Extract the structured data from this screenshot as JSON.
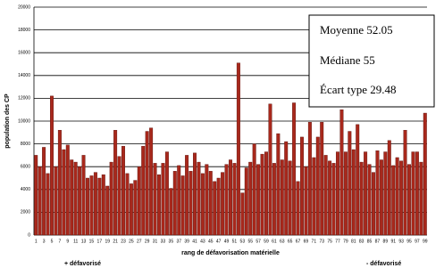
{
  "chart_data": {
    "type": "bar",
    "y_label": "population des CP",
    "x_label": "rang de défavorisation matérielle",
    "annotations": [
      "+ défavorisé",
      "- défavorisé"
    ],
    "stats_box": [
      "Moyenne 52.05",
      "Médiane 55",
      "Écart type 29.48"
    ],
    "categories": [
      "1",
      null,
      "3",
      null,
      "5",
      null,
      "7",
      null,
      "9",
      null,
      "11",
      null,
      "13",
      null,
      "15",
      null,
      "17",
      null,
      "19",
      null,
      "21",
      null,
      "23",
      null,
      "25",
      null,
      "27",
      null,
      "29",
      null,
      "31",
      null,
      "33",
      null,
      "35",
      null,
      "37",
      null,
      "39",
      null,
      "41",
      null,
      "43",
      null,
      "45",
      null,
      "47",
      null,
      "49",
      null,
      "51",
      null,
      "53",
      null,
      "55",
      null,
      "57",
      null,
      "59",
      null,
      "61",
      null,
      "63",
      null,
      "65",
      null,
      "67",
      null,
      "69",
      null,
      "71",
      null,
      "73",
      null,
      "75",
      null,
      "77",
      null,
      "79",
      null,
      "81",
      null,
      "83",
      null,
      "85",
      null,
      "87",
      null,
      "89",
      null,
      "91",
      null,
      "93",
      null,
      "95",
      null,
      "97",
      null,
      "99"
    ],
    "values": [
      7000,
      6000,
      7700,
      5400,
      12200,
      6000,
      9200,
      7500,
      7900,
      6600,
      6400,
      6000,
      7000,
      5000,
      5200,
      5500,
      5000,
      5300,
      4300,
      6400,
      9200,
      6900,
      7800,
      5400,
      4500,
      4800,
      6000,
      7800,
      9100,
      9400,
      6300,
      5300,
      6300,
      7300,
      4100,
      5600,
      6100,
      5200,
      7000,
      5600,
      7200,
      6400,
      5400,
      6200,
      5600,
      4700,
      5000,
      5500,
      6200,
      6600,
      6300,
      15100,
      3700,
      5900,
      6400,
      8000,
      6200,
      7100,
      7300,
      11500,
      6300,
      8900,
      6600,
      8200,
      6500,
      11600,
      4700,
      8600,
      6000,
      9900,
      6800,
      8600,
      9900,
      7000,
      6500,
      6300,
      7300,
      11000,
      7300,
      9100,
      7500,
      9700,
      6400,
      7300,
      6200,
      5500,
      7400,
      6600,
      7300,
      8300,
      6100,
      6800,
      6500,
      9200,
      6200,
      7300,
      7300,
      6400,
      10700
    ],
    "color": "#a8281c",
    "ylim": [
      0,
      20000
    ],
    "yticks": [
      0,
      2000,
      4000,
      6000,
      8000,
      10000,
      12000,
      14000,
      16000,
      18000,
      20000
    ],
    "grid": true
  }
}
